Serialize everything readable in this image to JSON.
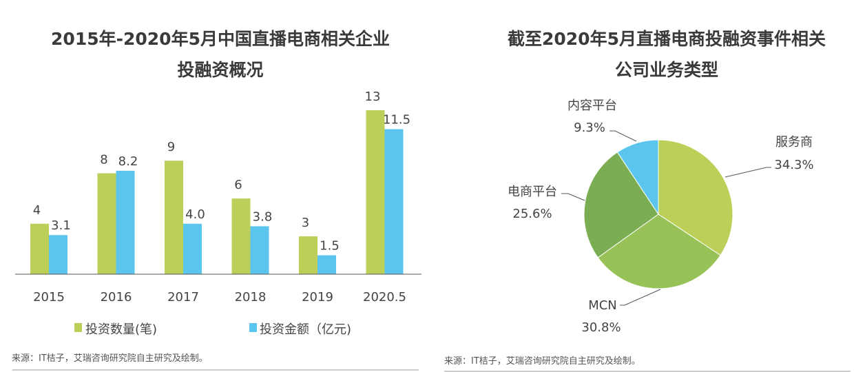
{
  "colors": {
    "green": "#bccf58",
    "blue": "#5bc5ee",
    "mcn": "#97c257",
    "ecom": "#7bad52",
    "axis": "#555555"
  },
  "chart_data": [
    {
      "type": "bar",
      "title_line1": "2015年-2020年5月中国直播电商相关企业",
      "title_line2": "投融资概况",
      "categories": [
        "2015",
        "2016",
        "2017",
        "2018",
        "2019",
        "2020.5"
      ],
      "series": [
        {
          "name": "投资数量(笔)",
          "values": [
            4,
            8,
            9,
            6,
            3,
            13
          ],
          "labels": [
            "4",
            "8",
            "9",
            "6",
            "3",
            "13"
          ]
        },
        {
          "name": "投资金额（亿元)",
          "values": [
            3.1,
            8.2,
            4.0,
            3.8,
            1.5,
            11.5
          ],
          "labels": [
            "3.1",
            "8.2",
            "4.0",
            "3.8",
            "1.5",
            "11.5"
          ]
        }
      ],
      "ylim": [
        0,
        13
      ],
      "grid": false,
      "legend": "bottom",
      "source": "来源：IT桔子，艾瑞咨询研究院自主研究及绘制。"
    },
    {
      "type": "pie",
      "title_line1": "截至2020年5月直播电商投融资事件相关",
      "title_line2": "公司业务类型",
      "slices": [
        {
          "name": "服务商",
          "value": 34.3,
          "label": "34.3%"
        },
        {
          "name": "MCN",
          "value": 30.8,
          "label": "30.8%"
        },
        {
          "name": "电商平台",
          "value": 25.6,
          "label": "25.6%"
        },
        {
          "name": "内容平台",
          "value": 9.3,
          "label": "9.3%"
        }
      ],
      "source": "来源：IT桔子，艾瑞咨询研究院自主研究及绘制。"
    }
  ]
}
